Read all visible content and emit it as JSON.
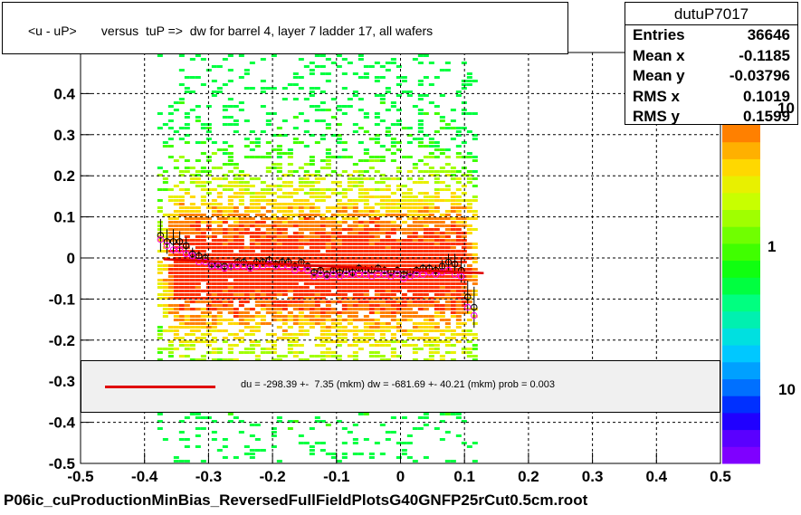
{
  "title": "<u - uP>       versus  tuP =>  dw for barrel 4, layer 7 ladder 17, all wafers",
  "footer": "P06ic_cuProductionMinBias_ReversedFullFieldPlotsG40GNFP25rCut0.5cm.root",
  "stats": {
    "name": "dutuP7017",
    "rows": [
      {
        "label": "Entries",
        "value": "36646"
      },
      {
        "label": "Mean x",
        "value": "-0.1185"
      },
      {
        "label": "Mean y",
        "value": "-0.03796"
      },
      {
        "label": "RMS x",
        "value": "0.1019"
      },
      {
        "label": "RMS y",
        "value": "0.1599"
      }
    ]
  },
  "legend": {
    "text": "du = -298.39 +-  7.35 (mkm) dw = -681.69 +- 40.21 (mkm) prob = 0.003",
    "line_color": "#e00000"
  },
  "colorbar": {
    "labels": [
      "10",
      "1",
      "10"
    ],
    "colors": [
      "#7f00ff",
      "#5a00ff",
      "#2000ff",
      "#0030ff",
      "#0070ff",
      "#00a0ff",
      "#00c8ff",
      "#00e0e0",
      "#00f0b0",
      "#00ff80",
      "#00ff40",
      "#10ff10",
      "#40ff00",
      "#70ff00",
      "#a0ff00",
      "#c8ff00",
      "#e8f000",
      "#ffd800",
      "#ffb000",
      "#ff8000"
    ]
  },
  "chart_data": {
    "type": "scatter",
    "xlim": [
      -0.5,
      0.5
    ],
    "ylim": [
      -0.5,
      0.5
    ],
    "x_ticks": [
      "-0.5",
      "-0.4",
      "-0.3",
      "-0.2",
      "-0.1",
      "0",
      "0.1",
      "0.2",
      "0.3",
      "0.4",
      "0.5"
    ],
    "y_ticks": [
      "-0.5",
      "-0.4",
      "-0.3",
      "-0.2",
      "-0.1",
      "0",
      "0.1",
      "0.2",
      "0.3",
      "0.4"
    ],
    "grid": true,
    "density": {
      "x_range": [
        -0.38,
        0.12
      ],
      "center_y": -0.02,
      "colors": [
        "#00ff40",
        "#40ff00",
        "#a0ff00",
        "#e8f000",
        "#ffd800",
        "#ff8000",
        "#ff3000"
      ]
    },
    "fit_line": {
      "x": [
        -0.37,
        0.13
      ],
      "y": [
        -0.003,
        -0.037
      ],
      "color": "#e00000"
    },
    "series": [
      {
        "color": "#000000",
        "x": [
          -0.375,
          -0.365,
          -0.355,
          -0.345,
          -0.335,
          -0.325,
          -0.315,
          -0.305,
          -0.295,
          -0.285,
          -0.275,
          -0.265,
          -0.255,
          -0.245,
          -0.235,
          -0.225,
          -0.215,
          -0.205,
          -0.195,
          -0.185,
          -0.175,
          -0.165,
          -0.155,
          -0.145,
          -0.135,
          -0.125,
          -0.115,
          -0.105,
          -0.095,
          -0.085,
          -0.075,
          -0.065,
          -0.055,
          -0.045,
          -0.035,
          -0.025,
          -0.015,
          -0.005,
          0.005,
          0.015,
          0.025,
          0.035,
          0.045,
          0.055,
          0.065,
          0.075,
          0.085,
          0.095,
          0.105,
          0.115
        ],
        "y": [
          0.055,
          0.04,
          0.04,
          0.04,
          0.03,
          0.01,
          0.005,
          0.0,
          -0.015,
          -0.015,
          -0.02,
          -0.02,
          -0.01,
          -0.01,
          -0.02,
          -0.01,
          -0.01,
          -0.005,
          -0.015,
          -0.01,
          -0.01,
          -0.02,
          -0.01,
          -0.02,
          -0.035,
          -0.03,
          -0.04,
          -0.03,
          -0.035,
          -0.03,
          -0.035,
          -0.025,
          -0.03,
          -0.03,
          -0.025,
          -0.03,
          -0.035,
          -0.03,
          -0.04,
          -0.035,
          -0.03,
          -0.025,
          -0.025,
          -0.03,
          -0.02,
          -0.01,
          -0.015,
          -0.03,
          -0.095,
          -0.12
        ],
        "yerr": [
          0.04,
          0.03,
          0.03,
          0.025,
          0.02,
          0.015,
          0.012,
          0.012,
          0.01,
          0.01,
          0.01,
          0.01,
          0.01,
          0.01,
          0.01,
          0.01,
          0.01,
          0.01,
          0.01,
          0.01,
          0.01,
          0.01,
          0.01,
          0.01,
          0.01,
          0.01,
          0.01,
          0.01,
          0.01,
          0.01,
          0.01,
          0.01,
          0.01,
          0.01,
          0.01,
          0.01,
          0.01,
          0.01,
          0.01,
          0.01,
          0.01,
          0.01,
          0.01,
          0.012,
          0.015,
          0.02,
          0.025,
          0.03,
          0.04,
          0.05
        ]
      },
      {
        "color": "#ff00ff",
        "x": [
          -0.375,
          -0.365,
          -0.355,
          -0.345,
          -0.335,
          -0.325,
          -0.315,
          -0.305,
          -0.295,
          -0.285,
          -0.275,
          -0.265,
          -0.255,
          -0.245,
          -0.235,
          -0.225,
          -0.215,
          -0.205,
          -0.195,
          -0.185,
          -0.175,
          -0.165,
          -0.155,
          -0.145,
          -0.135,
          -0.125,
          -0.115,
          -0.105,
          -0.095,
          -0.085,
          -0.075,
          -0.065,
          -0.055,
          -0.045,
          -0.035,
          -0.025,
          -0.015,
          -0.005,
          0.005,
          0.015,
          0.025,
          0.035,
          0.045,
          0.055,
          0.065,
          0.075,
          0.085,
          0.095,
          0.105,
          0.115
        ],
        "y": [
          0.045,
          0.03,
          0.02,
          0.02,
          0.01,
          0.005,
          -0.01,
          -0.01,
          -0.02,
          -0.02,
          -0.025,
          -0.02,
          -0.02,
          -0.02,
          -0.025,
          -0.02,
          -0.02,
          -0.015,
          -0.02,
          -0.02,
          -0.02,
          -0.03,
          -0.025,
          -0.03,
          -0.045,
          -0.04,
          -0.045,
          -0.04,
          -0.045,
          -0.04,
          -0.04,
          -0.04,
          -0.04,
          -0.045,
          -0.04,
          -0.04,
          -0.045,
          -0.04,
          -0.05,
          -0.045,
          -0.04,
          -0.04,
          -0.035,
          -0.04,
          -0.035,
          -0.03,
          -0.04,
          -0.045,
          -0.12,
          -0.14
        ],
        "yerr": []
      }
    ]
  }
}
